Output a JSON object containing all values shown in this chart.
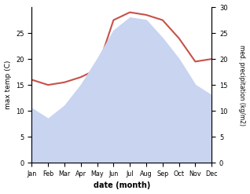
{
  "months": [
    "Jan",
    "Feb",
    "Mar",
    "Apr",
    "May",
    "Jun",
    "Jul",
    "Aug",
    "Sep",
    "Oct",
    "Nov",
    "Dec"
  ],
  "temp": [
    10.5,
    8.5,
    11.0,
    15.0,
    20.0,
    25.5,
    28.0,
    27.5,
    24.0,
    20.0,
    15.0,
    13.0
  ],
  "precip": [
    16.0,
    15.0,
    15.5,
    16.5,
    18.0,
    27.5,
    29.0,
    28.5,
    27.5,
    24.0,
    19.5,
    20.0
  ],
  "temp_color": "#c8504a",
  "precip_fill_color": "#c8d4f0",
  "temp_ylim": [
    0,
    30
  ],
  "precip_ylim": [
    0,
    30
  ],
  "left_yticks": [
    0,
    5,
    10,
    15,
    20,
    25
  ],
  "right_yticks": [
    0,
    5,
    10,
    15,
    20,
    25,
    30
  ],
  "xlabel": "date (month)",
  "ylabel_left": "max temp (C)",
  "ylabel_right": "med. precipitation (kg/m2)",
  "bg_color": "#ffffff"
}
